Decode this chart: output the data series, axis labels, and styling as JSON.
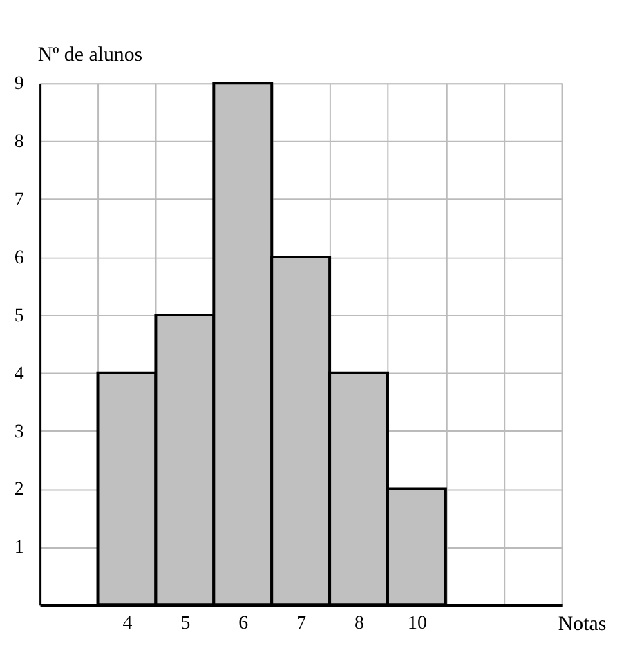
{
  "chart_data": {
    "type": "bar",
    "ylabel": "Nº de alunos",
    "xlabel": "Notas",
    "categories": [
      null,
      "4",
      "5",
      "6",
      "7",
      "8",
      "10",
      null,
      null
    ],
    "values": [
      null,
      4,
      5,
      9,
      6,
      4,
      2,
      null,
      null
    ],
    "color": "#c0c0c0",
    "ylim": [
      0,
      9
    ],
    "yticks": [
      1,
      2,
      3,
      4,
      5,
      6,
      7,
      8,
      9
    ],
    "grid": true
  }
}
